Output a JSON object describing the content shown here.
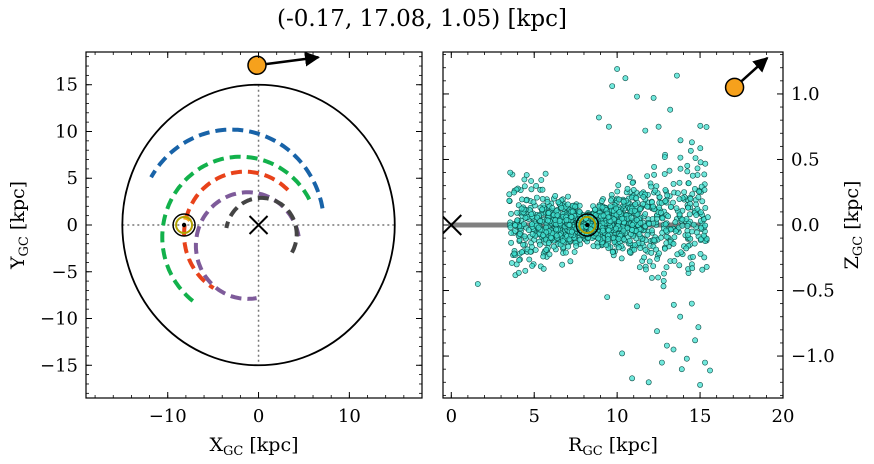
{
  "figure": {
    "title": "(-0.17, 17.08, 1.05) [kpc]",
    "colors": {
      "arm_blue": "#1863a8",
      "arm_green": "#12b14b",
      "arm_red": "#e8421a",
      "arm_purple": "#7e5b9a",
      "arm_gray": "#444444",
      "arm_orange": "#f6a11c",
      "marker_orange": "#f6a11c",
      "scatter_face": "#40e0d0",
      "sun_ring": "#b0a000",
      "disk_line": "#808080"
    }
  },
  "chart_data": [
    {
      "type": "line",
      "panel": "left",
      "xlabel": "X",
      "xlabel_sub": "GC",
      "xlabel_unit": " [kpc]",
      "ylabel": "Y",
      "ylabel_sub": "GC",
      "ylabel_unit": " [kpc]",
      "xlim": [
        -19,
        18
      ],
      "ylim": [
        -18.5,
        18.5
      ],
      "xticks": [
        -10,
        0,
        10
      ],
      "yticks": [
        -15,
        -10,
        -5,
        0,
        5,
        10,
        15
      ],
      "xtick_labels": [
        "−10",
        "0",
        "10"
      ],
      "ytick_labels": [
        "−15",
        "−10",
        "−5",
        "0",
        "5",
        "10",
        "15"
      ],
      "boundary_circle_radius": 15,
      "galactic_center": [
        0,
        0
      ],
      "sun_position": [
        -8.2,
        0
      ],
      "object_position": [
        -0.17,
        17.08
      ],
      "object_velocity_direction": [
        1,
        0.13
      ],
      "spiral_arms": [
        {
          "color": "arm_blue",
          "center": [
            -3,
            0
          ],
          "radius": 10.2,
          "theta_deg": [
            10,
            150
          ]
        },
        {
          "color": "arm_green",
          "center": [
            -2,
            -1.3
          ],
          "radius": 8.6,
          "theta_deg": [
            28,
            235
          ]
        },
        {
          "color": "arm_red",
          "center": [
            -1.5,
            -1
          ],
          "radius": 6.7,
          "theta_deg": [
            45,
            240
          ]
        },
        {
          "color": "arm_purple",
          "center": [
            -1.2,
            -2.2
          ],
          "radius": 5.7,
          "theta_deg": [
            10,
            280
          ]
        },
        {
          "color": "arm_gray",
          "center": [
            0.3,
            -1
          ],
          "radius": 3.9,
          "theta_deg": [
            330,
            170
          ]
        },
        {
          "color": "arm_orange",
          "center": [
            -8.2,
            0
          ],
          "radius": 0.8,
          "theta_deg": [
            35,
            95
          ]
        }
      ]
    },
    {
      "type": "scatter",
      "panel": "right",
      "xlabel": "R",
      "xlabel_sub": "GC",
      "xlabel_unit": " [kpc]",
      "ylabel": "Z",
      "ylabel_sub": "GC",
      "ylabel_unit": " [kpc]",
      "xlim": [
        -0.5,
        20
      ],
      "ylim": [
        -1.32,
        1.32
      ],
      "xticks": [
        0,
        5,
        10,
        15,
        20
      ],
      "yticks": [
        -1.0,
        -0.5,
        0.0,
        0.5,
        1.0
      ],
      "xtick_labels": [
        "0",
        "5",
        "10",
        "15",
        "20"
      ],
      "ytick_labels": [
        "−1.0",
        "−0.5",
        "0.0",
        "0.5",
        "1.0"
      ],
      "disk_segment": {
        "x": [
          0,
          15
        ],
        "y": 0
      },
      "galactic_center": [
        0,
        0
      ],
      "sun_position": [
        8.2,
        0
      ],
      "object_position": [
        17.08,
        1.05
      ],
      "object_velocity_direction": [
        1,
        0.9
      ],
      "scatter_cloud": {
        "n": 1600,
        "r_range": [
          3.5,
          15.5
        ],
        "r_peak": 8.5,
        "z_spread_near_sun": 0.08,
        "z_spread_outer": 0.55,
        "outliers": [
          [
            10.0,
            1.19
          ],
          [
            10.5,
            1.12
          ],
          [
            13.6,
            1.14
          ],
          [
            9.7,
            1.06
          ],
          [
            11.2,
            0.98
          ],
          [
            12.2,
            0.97
          ],
          [
            8.9,
            0.82
          ],
          [
            9.5,
            0.75
          ],
          [
            11.7,
            0.72
          ],
          [
            12.5,
            0.75
          ],
          [
            14.7,
            -0.88
          ],
          [
            15.3,
            -1.05
          ],
          [
            14.2,
            -1.02
          ],
          [
            13.0,
            -0.92
          ],
          [
            15.6,
            -1.11
          ],
          [
            10.9,
            -1.17
          ],
          [
            11.9,
            -1.2
          ],
          [
            12.7,
            -1.05
          ],
          [
            13.4,
            -0.95
          ],
          [
            14.9,
            -0.78
          ],
          [
            12.4,
            -0.81
          ],
          [
            13.8,
            -0.7
          ],
          [
            11.2,
            -0.62
          ],
          [
            1.6,
            -0.45
          ],
          [
            13.9,
            -1.1
          ],
          [
            15.0,
            -1.22
          ],
          [
            14.5,
            -0.6
          ],
          [
            10.3,
            -0.98
          ],
          [
            9.4,
            -0.55
          ],
          [
            13.2,
            0.88
          ]
        ]
      }
    }
  ]
}
